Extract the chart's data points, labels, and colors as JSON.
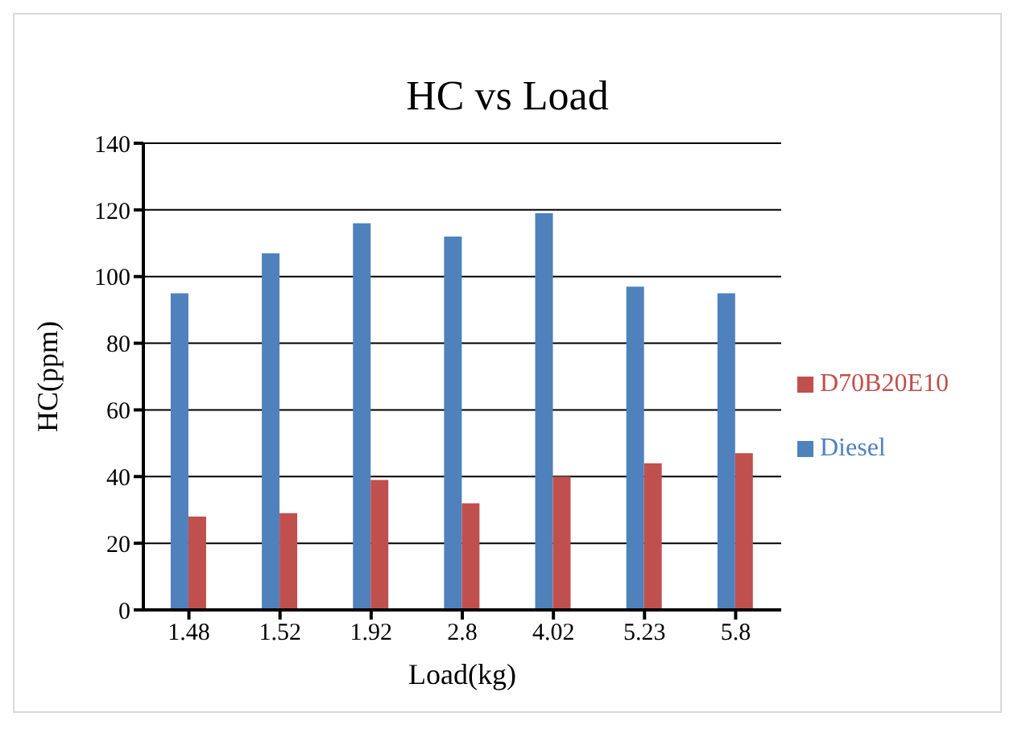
{
  "chart_data": {
    "type": "bar",
    "title": "HC vs Load",
    "xlabel": "Load(kg)",
    "ylabel": "HC(ppm)",
    "categories": [
      "1.48",
      "1.52",
      "1.92",
      "2.8",
      "4.02",
      "5.23",
      "5.8"
    ],
    "series": [
      {
        "name": "Diesel",
        "color": "#4f81bd",
        "values": [
          95,
          107,
          116,
          112,
          119,
          97,
          95
        ]
      },
      {
        "name": "D70B20E10",
        "color": "#c0504d",
        "values": [
          28,
          29,
          39,
          32,
          40,
          44,
          47
        ]
      }
    ],
    "ylim": [
      0,
      140
    ],
    "yticks": [
      0,
      20,
      40,
      60,
      80,
      100,
      120,
      140
    ],
    "grid": "y",
    "legend": "right"
  }
}
